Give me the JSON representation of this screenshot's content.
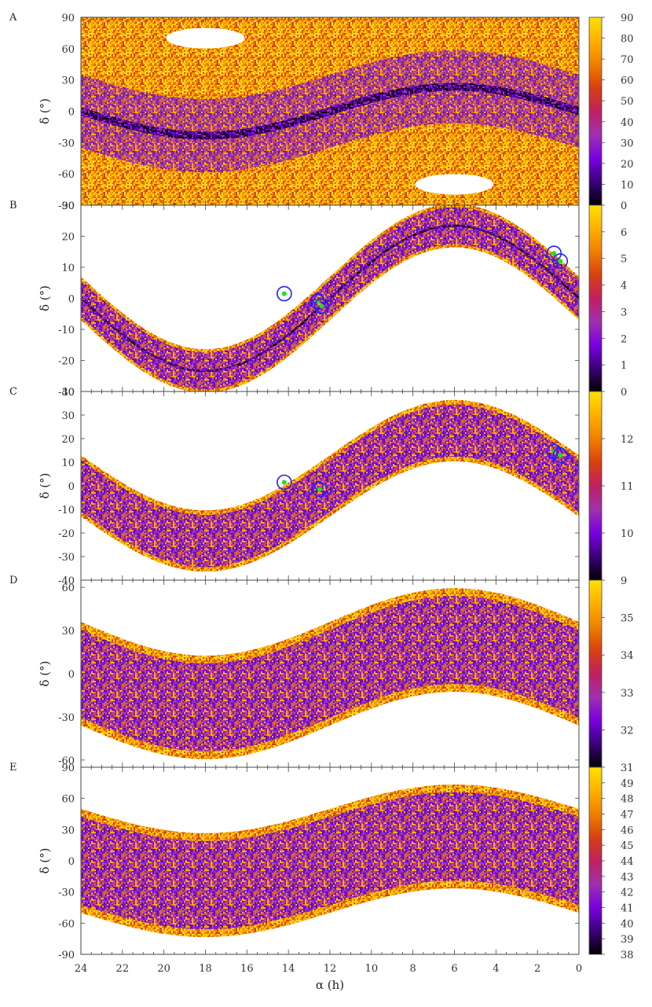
{
  "chart_data": {
    "type": "heatmap",
    "xlabel": "α (h)",
    "x_ticks": [
      24,
      22,
      20,
      18,
      16,
      14,
      12,
      10,
      8,
      6,
      4,
      2,
      0
    ],
    "xlim": [
      24,
      0
    ],
    "colormap": [
      "#000000",
      "#3b007a",
      "#7a00e0",
      "#a030b0",
      "#c02060",
      "#d84010",
      "#f08000",
      "#ffb000",
      "#ffe000"
    ],
    "marker_colors": {
      "ring": "#2020ff",
      "point": "#20e020"
    },
    "panels": [
      {
        "letter": "A",
        "ylabel": "δ (°)",
        "ylim": [
          -90,
          90
        ],
        "y_ticks": [
          90,
          60,
          30,
          0,
          -30,
          -60,
          -90
        ],
        "colorbar": {
          "range": [
            0,
            90
          ],
          "ticks": [
            90,
            80,
            70,
            60,
            50,
            40,
            30,
            20,
            10,
            0
          ]
        },
        "band_center_amplitude_deg": 23.4,
        "band_halfwidth_deg": null,
        "holes": [
          {
            "ra_h": 18,
            "dec_deg": 70
          },
          {
            "ra_h": 6,
            "dec_deg": -70
          }
        ],
        "markers": []
      },
      {
        "letter": "B",
        "ylabel": "δ (°)",
        "ylim": [
          -30,
          30
        ],
        "y_ticks": [
          30,
          20,
          10,
          0,
          -10,
          -20,
          -30
        ],
        "colorbar": {
          "range": [
            0,
            7
          ],
          "ticks": [
            6,
            5,
            4,
            3,
            2,
            1,
            0
          ]
        },
        "band_center_amplitude_deg": 23.4,
        "band_halfwidth_deg": 7,
        "holes": [],
        "markers": [
          {
            "ra_h": 14.2,
            "dec_deg": 1.5
          },
          {
            "ra_h": 12.6,
            "dec_deg": -1.0
          },
          {
            "ra_h": 12.4,
            "dec_deg": -2.5
          },
          {
            "ra_h": 1.2,
            "dec_deg": 14.5
          },
          {
            "ra_h": 0.9,
            "dec_deg": 12.0
          }
        ]
      },
      {
        "letter": "C",
        "ylabel": "δ (°)",
        "ylim": [
          -40,
          40
        ],
        "y_ticks": [
          40,
          30,
          20,
          10,
          0,
          -10,
          -20,
          -30,
          -40
        ],
        "colorbar": {
          "range": [
            9,
            13
          ],
          "ticks": [
            12,
            11,
            10,
            9
          ]
        },
        "band_center_amplitude_deg": 23.4,
        "band_halfwidth_deg": 13,
        "holes": [],
        "markers": [
          {
            "ra_h": 14.2,
            "dec_deg": 1.5
          },
          {
            "ra_h": 12.5,
            "dec_deg": -1.5
          },
          {
            "ra_h": 1.2,
            "dec_deg": 14.5
          },
          {
            "ra_h": 0.9,
            "dec_deg": 13.0
          }
        ]
      },
      {
        "letter": "D",
        "ylabel": "δ (°)",
        "ylim": [
          -65,
          65
        ],
        "y_ticks": [
          60,
          30,
          0,
          -30,
          -60
        ],
        "colorbar": {
          "range": [
            31,
            36
          ],
          "ticks": [
            35,
            34,
            33,
            32,
            31
          ]
        },
        "band_center_amplitude_deg": 23.4,
        "band_halfwidth_deg": 36,
        "holes": [],
        "markers": []
      },
      {
        "letter": "E",
        "ylabel": "δ (°)",
        "ylim": [
          -90,
          90
        ],
        "y_ticks": [
          90,
          60,
          30,
          0,
          -30,
          -60,
          -90
        ],
        "colorbar": {
          "range": [
            38,
            50
          ],
          "ticks": [
            49,
            48,
            47,
            46,
            45,
            44,
            43,
            42,
            41,
            40,
            39,
            38
          ]
        },
        "band_center_amplitude_deg": 23.4,
        "band_halfwidth_deg": 50,
        "holes": [],
        "markers": []
      }
    ]
  }
}
